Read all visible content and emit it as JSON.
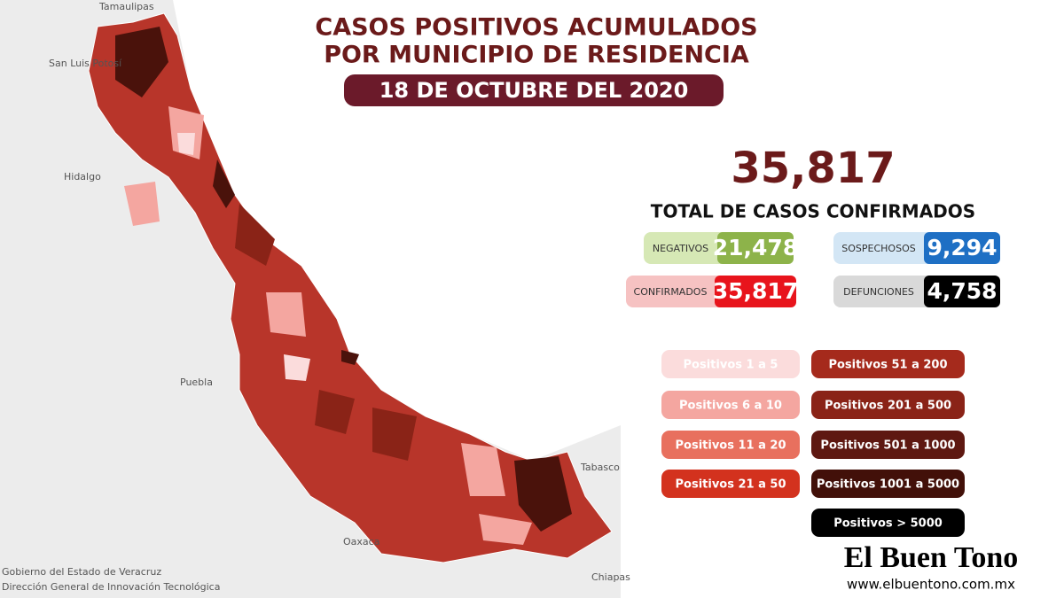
{
  "header": {
    "title_lines": [
      "CASOS POSITIVOS ACUMULADOS",
      "POR MUNICIPIO DE RESIDENCIA"
    ],
    "date": "18 DE OCTUBRE DEL 2020"
  },
  "total": {
    "value": "35,817",
    "label": "TOTAL DE CASOS CONFIRMADOS"
  },
  "stats": [
    {
      "label": "NEGATIVOS",
      "value": "21,478",
      "color": "#8db34a",
      "light": "#d6e8b5"
    },
    {
      "label": "SOSPECHOSOS",
      "value": "9,294",
      "color": "#1e6fc4",
      "light": "#d3e6f5"
    },
    {
      "label": "CONFIRMADOS",
      "value": "35,817",
      "color": "#e8141c",
      "light": "#f6c2c2"
    },
    {
      "label": "DEFUNCIONES",
      "value": "4,758",
      "color": "#000000",
      "light": "#d9d9d9"
    }
  ],
  "legend": [
    {
      "label": "Positivos 1 a 5",
      "color": "#fbdcdc"
    },
    {
      "label": "Positivos 6 a 10",
      "color": "#f4a6a0"
    },
    {
      "label": "Positivos 11 a 20",
      "color": "#e8705e"
    },
    {
      "label": "Positivos 21 a 50",
      "color": "#d3321e"
    },
    {
      "label": "Positivos 51 a 200",
      "color": "#a52a1c"
    },
    {
      "label": "Positivos 201 a 500",
      "color": "#8a2317"
    },
    {
      "label": "Positivos 501 a 1000",
      "color": "#5e1811"
    },
    {
      "label": "Positivos 1001 a 5000",
      "color": "#421009"
    },
    {
      "label": "Positivos > 5000",
      "color": "#000000"
    }
  ],
  "map": {
    "states": [
      "Tamaulipas",
      "San Luis Potosí",
      "Hidalgo",
      "Puebla",
      "Oaxaca",
      "Tabasco",
      "Chiapas"
    ]
  },
  "source": [
    "Gobierno del Estado de Veracruz",
    "Dirección General de Innovación Tecnológica"
  ],
  "brand": {
    "name": "El Buen Tono",
    "url": "www.elbuentono.com.mx"
  }
}
